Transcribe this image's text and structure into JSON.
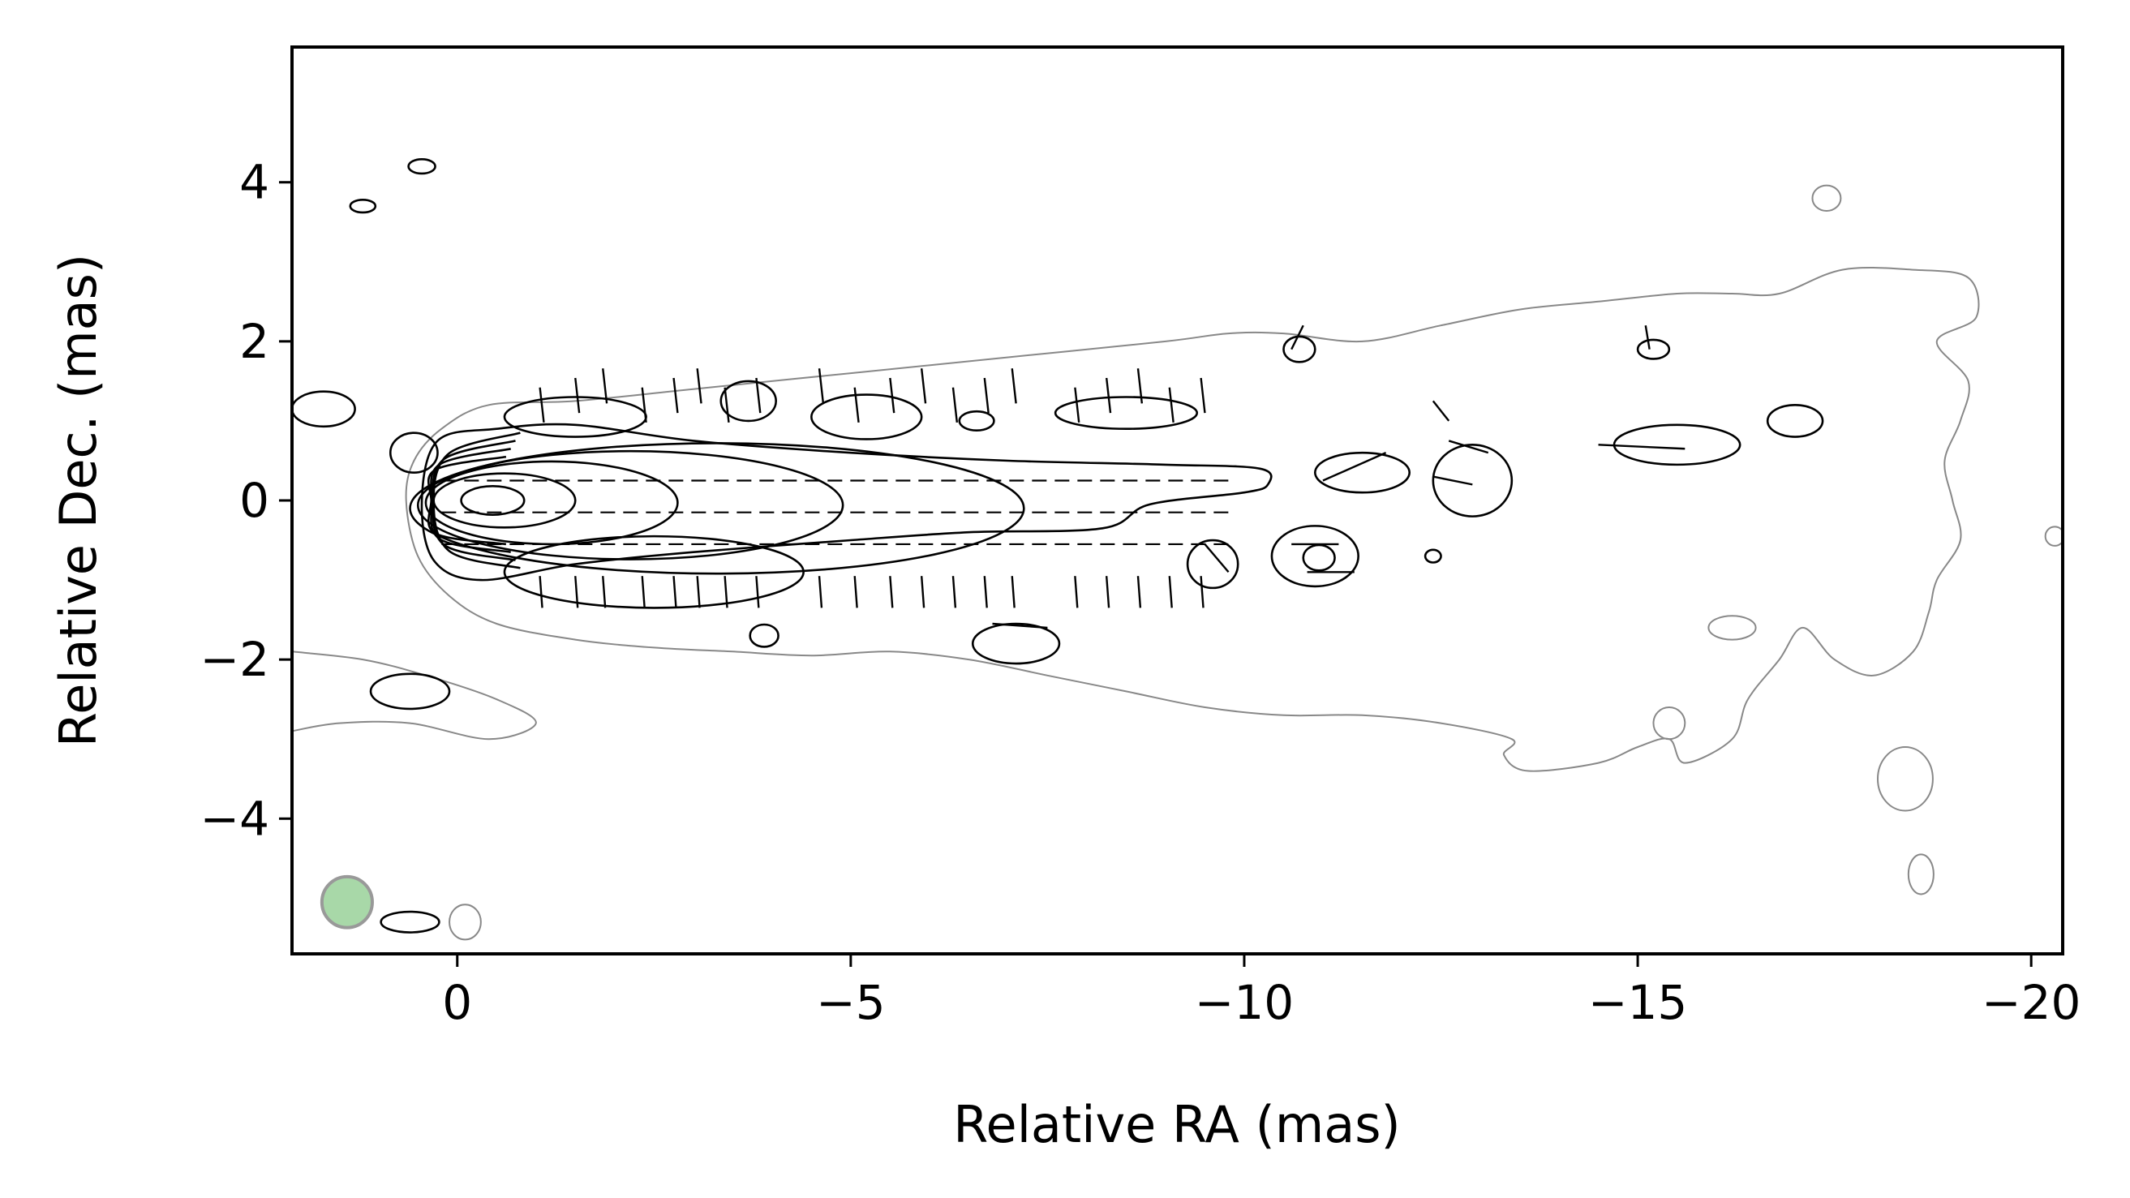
{
  "chart_data": {
    "type": "contour",
    "xlabel": "Relative RA (mas)",
    "ylabel": "Relative Dec. (mas)",
    "xlim": [
      2.1,
      -20.4
    ],
    "ylim": [
      -5.7,
      5.7
    ],
    "x_axis_inverted": true,
    "xticks": [
      {
        "value": 0,
        "label": "0"
      },
      {
        "value": -5,
        "label": "−5"
      },
      {
        "value": -10,
        "label": "−10"
      },
      {
        "value": -15,
        "label": "−15"
      },
      {
        "value": -20,
        "label": "−20"
      }
    ],
    "yticks": [
      {
        "value": 4,
        "label": "4"
      },
      {
        "value": 2,
        "label": "2"
      },
      {
        "value": 0,
        "label": "0"
      },
      {
        "value": -2,
        "label": "−2"
      },
      {
        "value": -4,
        "label": "−4"
      }
    ],
    "grid": false,
    "colors": {
      "outer_contour": "#888888",
      "contours": "#000000",
      "beam_fill": "#a8d8a8",
      "beam_edge": "#999999"
    },
    "beam": {
      "x": 1.4,
      "y": -5.05,
      "radius_mas": 0.32
    },
    "outer_contour": [
      [
        -0.4,
        1.2
      ],
      [
        -1.5,
        1.25
      ],
      [
        -3,
        1.4
      ],
      [
        -5,
        1.6
      ],
      [
        -7,
        1.8
      ],
      [
        -9,
        2.0
      ],
      [
        -9.8,
        2.1
      ],
      [
        -10.5,
        2.1
      ],
      [
        -11.5,
        2.0
      ],
      [
        -12.5,
        2.2
      ],
      [
        -13.5,
        2.4
      ],
      [
        -14.5,
        2.5
      ],
      [
        -15.5,
        2.6
      ],
      [
        -16.2,
        2.6
      ],
      [
        -16.8,
        2.6
      ],
      [
        -17.6,
        2.9
      ],
      [
        -18.5,
        2.9
      ],
      [
        -19.2,
        2.8
      ],
      [
        -19.3,
        2.3
      ],
      [
        -18.8,
        2.0
      ],
      [
        -19.2,
        1.5
      ],
      [
        -19.1,
        1.0
      ],
      [
        -18.9,
        0.5
      ],
      [
        -19.0,
        0.0
      ],
      [
        -19.1,
        -0.5
      ],
      [
        -18.8,
        -1.0
      ],
      [
        -18.7,
        -1.4
      ],
      [
        -18.5,
        -1.9
      ],
      [
        -18.0,
        -2.2
      ],
      [
        -17.5,
        -2.0
      ],
      [
        -17.1,
        -1.6
      ],
      [
        -16.8,
        -2.0
      ],
      [
        -16.4,
        -2.5
      ],
      [
        -16.2,
        -3.0
      ],
      [
        -15.6,
        -3.3
      ],
      [
        -15.4,
        -3.0
      ],
      [
        -15.0,
        -3.1
      ],
      [
        -14.5,
        -3.3
      ],
      [
        -13.6,
        -3.4
      ],
      [
        -13.3,
        -3.2
      ],
      [
        -13.4,
        -3.0
      ],
      [
        -12.5,
        -2.8
      ],
      [
        -11.5,
        -2.7
      ],
      [
        -10.5,
        -2.7
      ],
      [
        -9.5,
        -2.6
      ],
      [
        -8.5,
        -2.4
      ],
      [
        -7.5,
        -2.2
      ],
      [
        -6.5,
        -2.0
      ],
      [
        -5.5,
        -1.9
      ],
      [
        -4.5,
        -1.95
      ],
      [
        -3.5,
        -1.9
      ],
      [
        -2.5,
        -1.85
      ],
      [
        -1.5,
        -1.75
      ],
      [
        -0.5,
        -1.55
      ],
      [
        0.1,
        -1.2
      ],
      [
        0.5,
        -0.7
      ],
      [
        0.65,
        0.0
      ],
      [
        0.55,
        0.5
      ],
      [
        0.2,
        0.9
      ]
    ],
    "outer_lower_branch": [
      [
        2.1,
        -1.9
      ],
      [
        1.2,
        -2.0
      ],
      [
        0.4,
        -2.2
      ],
      [
        -0.5,
        -2.5
      ],
      [
        -1.0,
        -2.8
      ],
      [
        -0.4,
        -3.0
      ],
      [
        0.6,
        -2.8
      ],
      [
        1.5,
        -2.8
      ],
      [
        2.1,
        -2.9
      ]
    ],
    "core_contours": [
      {
        "center": [
          -0.45,
          0.0
        ],
        "rx": 0.4,
        "ry": 0.18
      },
      {
        "center": [
          -0.6,
          0.0
        ],
        "rx": 0.9,
        "ry": 0.34
      },
      {
        "center": [
          -1.2,
          -0.03
        ],
        "rx": 1.6,
        "ry": 0.52
      },
      {
        "center": [
          -2.2,
          -0.06
        ],
        "rx": 2.7,
        "ry": 0.68
      },
      {
        "center": [
          -3.3,
          -0.1
        ],
        "rx": 3.9,
        "ry": 0.82
      }
    ],
    "jet_contour": [
      [
        0.25,
        0.75
      ],
      [
        -0.5,
        0.9
      ],
      [
        -1.5,
        0.95
      ],
      [
        -3,
        0.75
      ],
      [
        -5,
        0.6
      ],
      [
        -7,
        0.5
      ],
      [
        -9,
        0.45
      ],
      [
        -10.2,
        0.4
      ],
      [
        -10.3,
        0.2
      ],
      [
        -10.0,
        0.1
      ],
      [
        -8.8,
        -0.05
      ],
      [
        -8.2,
        -0.35
      ],
      [
        -6.5,
        -0.4
      ],
      [
        -5,
        -0.5
      ],
      [
        -3,
        -0.65
      ],
      [
        -1.5,
        -0.8
      ],
      [
        -0.3,
        -1.0
      ],
      [
        0.3,
        -0.75
      ],
      [
        0.45,
        0.0
      ]
    ],
    "flux_blobs": [
      [
        -1.5,
        1.05,
        0.9,
        0.25
      ],
      [
        -3.7,
        1.25,
        0.35,
        0.25
      ],
      [
        -5.2,
        1.05,
        0.7,
        0.28
      ],
      [
        -6.6,
        1.0,
        0.22,
        0.12
      ],
      [
        -8.5,
        1.1,
        0.9,
        0.2
      ],
      [
        -2.5,
        -0.9,
        1.9,
        0.45
      ],
      [
        -3.9,
        -1.7,
        0.18,
        0.14
      ],
      [
        -7.1,
        -1.8,
        0.55,
        0.25
      ],
      [
        -9.6,
        -0.8,
        0.32,
        0.3
      ],
      [
        -10.9,
        -0.7,
        0.55,
        0.38
      ],
      [
        -10.95,
        -0.72,
        0.2,
        0.16
      ],
      [
        -11.5,
        0.35,
        0.6,
        0.25
      ],
      [
        -12.9,
        0.25,
        0.5,
        0.45
      ],
      [
        -15.5,
        0.7,
        0.8,
        0.25
      ],
      [
        -15.2,
        1.9,
        0.2,
        0.12
      ],
      [
        -10.7,
        1.9,
        0.2,
        0.16
      ],
      [
        -12.4,
        -0.7,
        0.1,
        0.08
      ],
      [
        -17.0,
        1.0,
        0.35,
        0.2
      ],
      [
        1.7,
        1.15,
        0.4,
        0.22
      ],
      [
        0.45,
        4.2,
        0.17,
        0.09
      ],
      [
        1.2,
        3.7,
        0.16,
        0.08
      ],
      [
        0.6,
        -2.4,
        0.5,
        0.22
      ],
      [
        0.6,
        -5.3,
        0.37,
        0.13
      ],
      [
        0.55,
        0.6,
        0.3,
        0.25
      ]
    ],
    "outer_islands": [
      [
        -17.4,
        3.8,
        0.18,
        0.16
      ],
      [
        -15.4,
        -2.8,
        0.2,
        0.2
      ],
      [
        -18.4,
        -3.5,
        0.35,
        0.4
      ],
      [
        -18.6,
        -4.7,
        0.16,
        0.25
      ],
      [
        -16.2,
        -1.6,
        0.3,
        0.15
      ],
      [
        -0.1,
        -5.3,
        0.2,
        0.22
      ],
      [
        -20.3,
        -0.45,
        0.12,
        0.12
      ]
    ],
    "polarization_vectors": {
      "vertical_x": [
        -1.05,
        -1.5,
        -1.85,
        -2.35,
        -2.75,
        -3.05,
        -3.4,
        -3.8,
        -4.6,
        -5.05,
        -5.5,
        -5.9,
        -6.3,
        -6.7,
        -7.05,
        -7.85,
        -8.25,
        -8.65,
        -9.05,
        -9.45
      ],
      "horizontal_y": [
        0.25,
        -0.15,
        -0.55
      ],
      "horizontal_x_range": [
        0.2,
        -9.9
      ]
    }
  }
}
